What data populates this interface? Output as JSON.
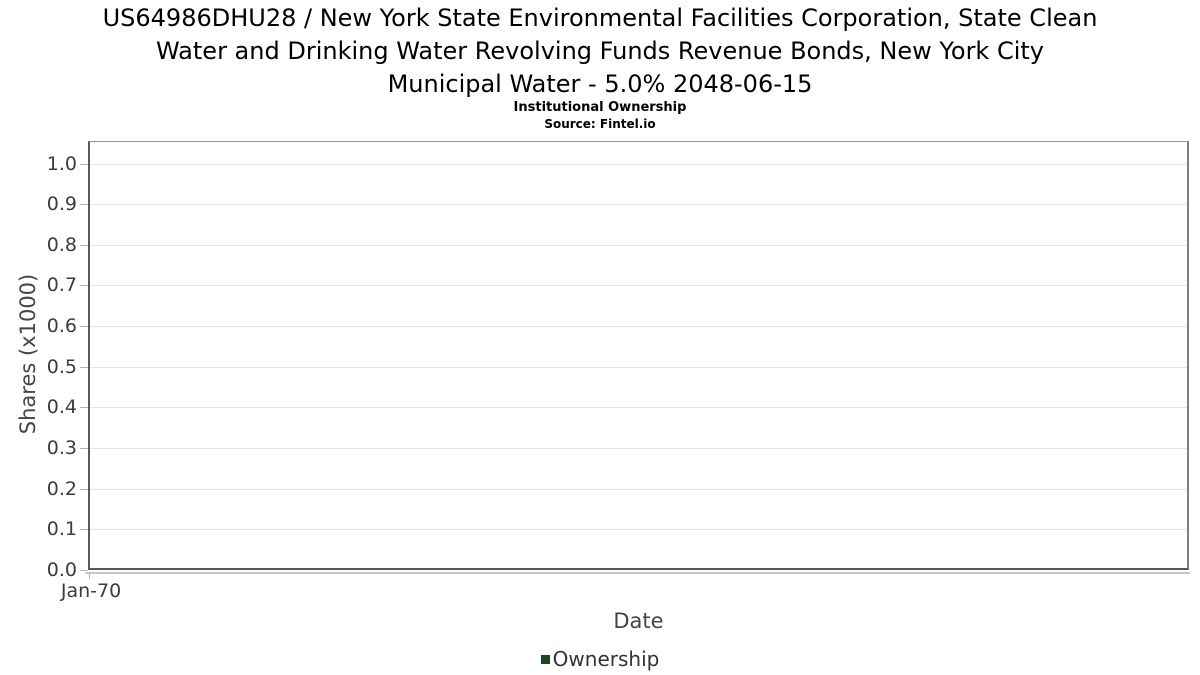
{
  "header": {
    "title_lines": [
      "US64986DHU28 / New York State Environmental Facilities Corporation, State Clean",
      "Water and Drinking Water Revolving Funds Revenue Bonds, New York City",
      "Municipal Water - 5.0% 2048-06-15"
    ],
    "subtitle": "Institutional Ownership",
    "source": "Source: Fintel.io"
  },
  "chart_data": {
    "type": "line",
    "title": "US64986DHU28 / New York State Environmental Facilities Corporation, State Clean Water and Drinking Water Revolving Funds Revenue Bonds, New York City Municipal Water - 5.0% 2048-06-15",
    "subtitle": "Institutional Ownership",
    "source": "Source: Fintel.io",
    "xlabel": "Date",
    "ylabel": "Shares (x1000)",
    "ylim": [
      0.0,
      1.0
    ],
    "yticks": [
      "0.0",
      "0.1",
      "0.2",
      "0.3",
      "0.4",
      "0.5",
      "0.6",
      "0.7",
      "0.8",
      "0.9",
      "1.0"
    ],
    "xticks": [
      "Jan-70"
    ],
    "grid": "horizontal",
    "legend_position": "bottom",
    "series": [
      {
        "name": "Ownership",
        "color": "#1e4627",
        "x": [],
        "values": []
      }
    ],
    "colors": {
      "grid": "#e4e4e4",
      "axis": "#585858",
      "tick_text": "#3c3c3c",
      "series_green": "#1e4627"
    }
  }
}
